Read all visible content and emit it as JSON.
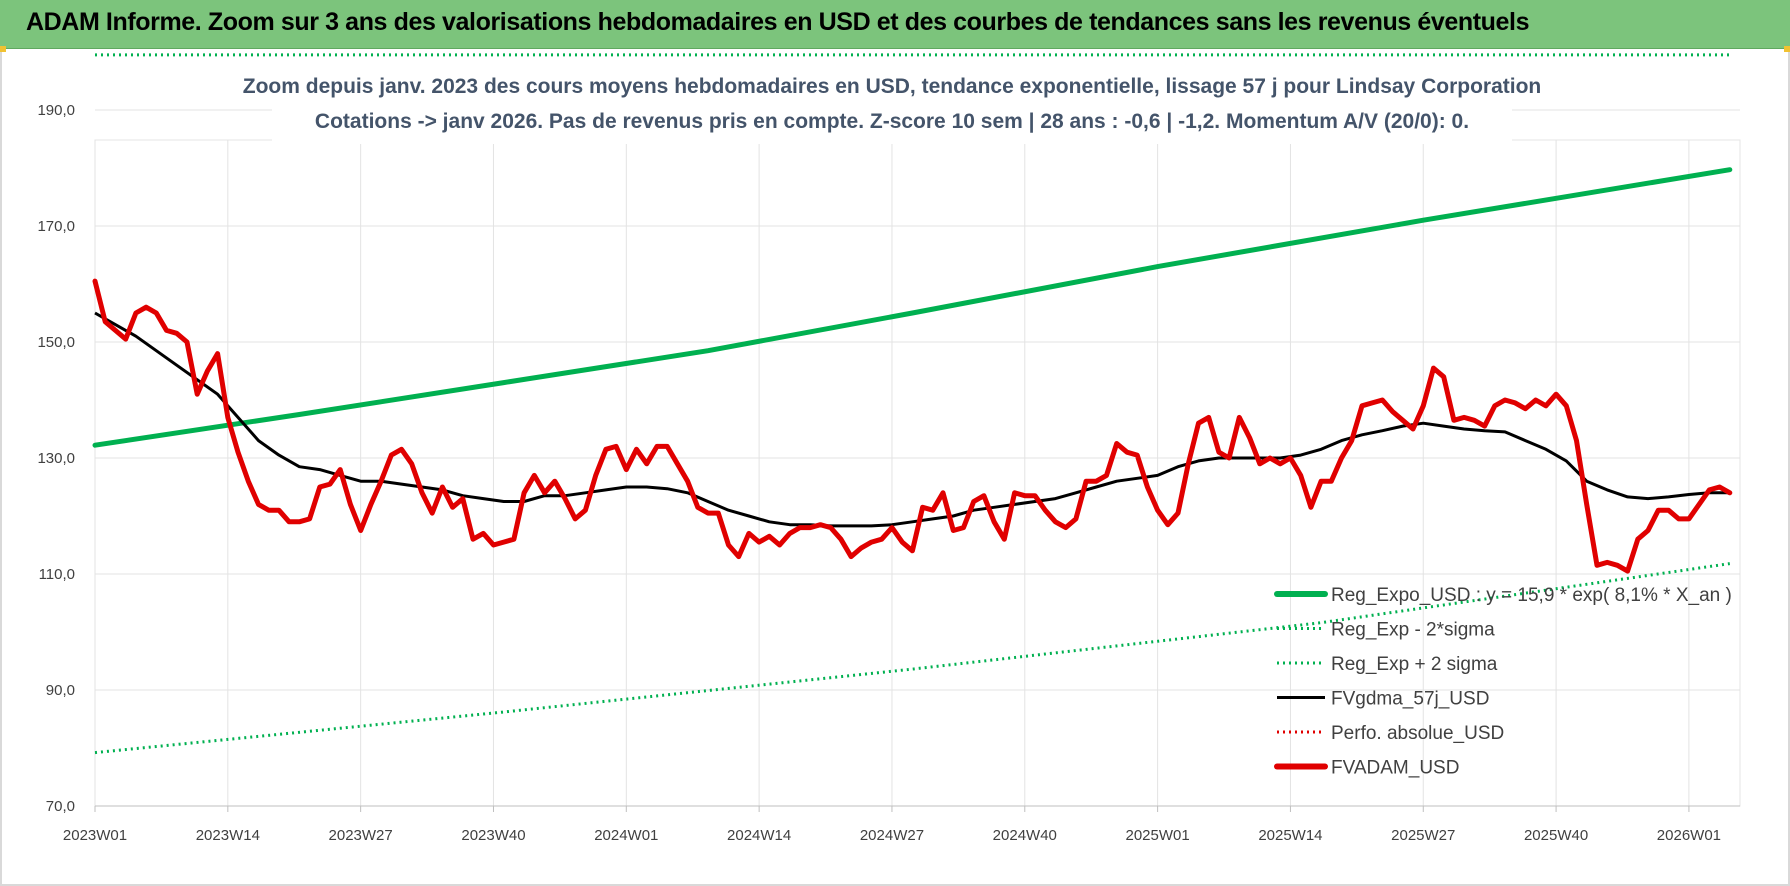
{
  "banner": {
    "title": "ADAM Informe. Zoom sur 3 ans des valorisations hebdomadaires en USD et des courbes de tendances sans les revenus éventuels"
  },
  "colors": {
    "banner_bg": "#7cc47c",
    "reg_green": "#00b050",
    "fv_black": "#000000",
    "perf_red": "#e00000",
    "subtitle": "#44546a"
  },
  "chart_data": {
    "type": "line",
    "subtitle_line1": "Zoom depuis janv. 2023 des cours moyens hebdomadaires en USD, tendance exponentielle, lissage 57 j pour Lindsay Corporation",
    "subtitle_line2": "Cotations -> janv 2026. Pas de revenus pris en compte. Z-score 10 sem | 28 ans : -0,6 | -1,2. Momentum A/V (20/0): 0.",
    "xlim": [
      0,
      161
    ],
    "ylim": [
      70,
      200
    ],
    "grid": true,
    "legend_position": "bottom-right",
    "x_ticks": [
      {
        "x": 0,
        "label": "2023W01"
      },
      {
        "x": 13,
        "label": "2023W14"
      },
      {
        "x": 26,
        "label": "2023W27"
      },
      {
        "x": 39,
        "label": "2023W40"
      },
      {
        "x": 52,
        "label": "2024W01"
      },
      {
        "x": 65,
        "label": "2024W14"
      },
      {
        "x": 78,
        "label": "2024W27"
      },
      {
        "x": 91,
        "label": "2024W40"
      },
      {
        "x": 104,
        "label": "2025W01"
      },
      {
        "x": 117,
        "label": "2025W14"
      },
      {
        "x": 130,
        "label": "2025W27"
      },
      {
        "x": 143,
        "label": "2025W40"
      },
      {
        "x": 156,
        "label": "2026W01"
      }
    ],
    "y_ticks": [
      {
        "v": 70,
        "label": "70,0"
      },
      {
        "v": 90,
        "label": "90,0"
      },
      {
        "v": 110,
        "label": "110,0"
      },
      {
        "v": 130,
        "label": "130,0"
      },
      {
        "v": 150,
        "label": "150,0"
      },
      {
        "v": 170,
        "label": "170,0"
      },
      {
        "v": 190,
        "label": "190,0"
      }
    ],
    "series": [
      {
        "name": "Reg_Expo_USD : y = 15,9 * exp( 8,1% *  X_an )",
        "style": "solid-thick",
        "color": "#00b050",
        "points": [
          [
            0,
            132.2
          ],
          [
            20,
            137.5
          ],
          [
            40,
            143
          ],
          [
            60,
            148.5
          ],
          [
            80,
            155
          ],
          [
            104,
            163
          ],
          [
            130,
            171
          ],
          [
            160,
            179.7
          ]
        ]
      },
      {
        "name": "Reg_Exp - 2*sigma",
        "style": "dotted",
        "color": "#00b050",
        "points": [
          [
            0,
            79.2
          ],
          [
            40,
            86.2
          ],
          [
            80,
            93.6
          ],
          [
            120,
            101.6
          ],
          [
            160,
            111.8
          ]
        ]
      },
      {
        "name": "Reg_Exp + 2 sigma",
        "style": "dotted",
        "color": "#00b050",
        "points": [
          [
            0,
            199.5
          ],
          [
            160,
            199.5
          ]
        ]
      },
      {
        "name": "FVgdma_57j_USD",
        "style": "solid",
        "color": "#000000",
        "points": [
          [
            0,
            155
          ],
          [
            4,
            151
          ],
          [
            8,
            146
          ],
          [
            12,
            141
          ],
          [
            14,
            137
          ],
          [
            16,
            133
          ],
          [
            18,
            130.5
          ],
          [
            20,
            128.5
          ],
          [
            22,
            128
          ],
          [
            24,
            127
          ],
          [
            26,
            126
          ],
          [
            28,
            126
          ],
          [
            30,
            125.5
          ],
          [
            32,
            125
          ],
          [
            34,
            124.5
          ],
          [
            36,
            123.5
          ],
          [
            38,
            123
          ],
          [
            40,
            122.5
          ],
          [
            42,
            122.5
          ],
          [
            44,
            123.5
          ],
          [
            46,
            123.5
          ],
          [
            48,
            124
          ],
          [
            50,
            124.5
          ],
          [
            52,
            125
          ],
          [
            54,
            125
          ],
          [
            56,
            124.7
          ],
          [
            58,
            124
          ],
          [
            60,
            122.5
          ],
          [
            62,
            121
          ],
          [
            64,
            120
          ],
          [
            66,
            119
          ],
          [
            68,
            118.5
          ],
          [
            70,
            118.5
          ],
          [
            72,
            118.3
          ],
          [
            74,
            118.3
          ],
          [
            76,
            118.3
          ],
          [
            78,
            118.5
          ],
          [
            80,
            119
          ],
          [
            82,
            119.5
          ],
          [
            84,
            120
          ],
          [
            86,
            121
          ],
          [
            88,
            121.5
          ],
          [
            90,
            122
          ],
          [
            92,
            122.5
          ],
          [
            94,
            123
          ],
          [
            96,
            124
          ],
          [
            98,
            125
          ],
          [
            100,
            126
          ],
          [
            102,
            126.5
          ],
          [
            104,
            127
          ],
          [
            106,
            128.5
          ],
          [
            108,
            129.5
          ],
          [
            110,
            130
          ],
          [
            112,
            130
          ],
          [
            114,
            130
          ],
          [
            116,
            130
          ],
          [
            118,
            130.5
          ],
          [
            120,
            131.5
          ],
          [
            122,
            133
          ],
          [
            124,
            134
          ],
          [
            126,
            134.7
          ],
          [
            128,
            135.5
          ],
          [
            130,
            136
          ],
          [
            132,
            135.5
          ],
          [
            134,
            135
          ],
          [
            136,
            134.7
          ],
          [
            138,
            134.5
          ],
          [
            140,
            133
          ],
          [
            142,
            131.5
          ],
          [
            144,
            129.5
          ],
          [
            146,
            126
          ],
          [
            148,
            124.5
          ],
          [
            150,
            123.3
          ],
          [
            152,
            123
          ],
          [
            154,
            123.3
          ],
          [
            156,
            123.7
          ],
          [
            158,
            124
          ],
          [
            160,
            124
          ]
        ]
      },
      {
        "name": "Perfo. absolue_USD",
        "style": "dotted",
        "color": "#e00000",
        "points": []
      },
      {
        "name": "FVADAM_USD",
        "style": "solid-thick",
        "color": "#e00000",
        "points": [
          [
            0,
            160.5
          ],
          [
            1,
            153.5
          ],
          [
            2,
            152
          ],
          [
            3,
            150.5
          ],
          [
            4,
            155
          ],
          [
            5,
            156
          ],
          [
            6,
            155
          ],
          [
            7,
            152
          ],
          [
            8,
            151.5
          ],
          [
            9,
            150
          ],
          [
            10,
            141
          ],
          [
            11,
            145
          ],
          [
            12,
            148
          ],
          [
            13,
            137
          ],
          [
            14,
            131
          ],
          [
            15,
            126
          ],
          [
            16,
            122
          ],
          [
            17,
            121
          ],
          [
            18,
            121
          ],
          [
            19,
            119
          ],
          [
            20,
            119
          ],
          [
            21,
            119.5
          ],
          [
            22,
            125
          ],
          [
            23,
            125.5
          ],
          [
            24,
            128
          ],
          [
            25,
            122
          ],
          [
            26,
            117.5
          ],
          [
            27,
            122
          ],
          [
            28,
            126
          ],
          [
            29,
            130.5
          ],
          [
            30,
            131.5
          ],
          [
            31,
            129
          ],
          [
            32,
            124
          ],
          [
            33,
            120.5
          ],
          [
            34,
            125
          ],
          [
            35,
            121.5
          ],
          [
            36,
            123
          ],
          [
            37,
            116
          ],
          [
            38,
            117
          ],
          [
            39,
            115
          ],
          [
            40,
            115.5
          ],
          [
            41,
            116
          ],
          [
            42,
            124
          ],
          [
            43,
            127
          ],
          [
            44,
            124
          ],
          [
            45,
            126
          ],
          [
            46,
            123
          ],
          [
            47,
            119.5
          ],
          [
            48,
            121
          ],
          [
            49,
            127
          ],
          [
            50,
            131.5
          ],
          [
            51,
            132
          ],
          [
            52,
            128
          ],
          [
            53,
            131.5
          ],
          [
            54,
            129
          ],
          [
            55,
            132
          ],
          [
            56,
            132
          ],
          [
            57,
            129
          ],
          [
            58,
            126
          ],
          [
            59,
            121.5
          ],
          [
            60,
            120.5
          ],
          [
            61,
            120.5
          ],
          [
            62,
            115
          ],
          [
            63,
            113
          ],
          [
            64,
            117
          ],
          [
            65,
            115.5
          ],
          [
            66,
            116.5
          ],
          [
            67,
            115
          ],
          [
            68,
            117
          ],
          [
            69,
            118
          ],
          [
            70,
            118
          ],
          [
            71,
            118.5
          ],
          [
            72,
            118
          ],
          [
            73,
            116
          ],
          [
            74,
            113
          ],
          [
            75,
            114.5
          ],
          [
            76,
            115.5
          ],
          [
            77,
            116
          ],
          [
            78,
            118
          ],
          [
            79,
            115.5
          ],
          [
            80,
            114
          ],
          [
            81,
            121.5
          ],
          [
            82,
            121
          ],
          [
            83,
            124
          ],
          [
            84,
            117.5
          ],
          [
            85,
            118
          ],
          [
            86,
            122.5
          ],
          [
            87,
            123.5
          ],
          [
            88,
            119
          ],
          [
            89,
            116
          ],
          [
            90,
            124
          ],
          [
            91,
            123.5
          ],
          [
            92,
            123.5
          ],
          [
            93,
            121
          ],
          [
            94,
            119
          ],
          [
            95,
            118
          ],
          [
            96,
            119.5
          ],
          [
            97,
            126
          ],
          [
            98,
            126
          ],
          [
            99,
            127
          ],
          [
            100,
            132.5
          ],
          [
            101,
            131
          ],
          [
            102,
            130.5
          ],
          [
            103,
            125
          ],
          [
            104,
            121
          ],
          [
            105,
            118.5
          ],
          [
            106,
            120.5
          ],
          [
            107,
            129
          ],
          [
            108,
            136
          ],
          [
            109,
            137
          ],
          [
            110,
            131
          ],
          [
            111,
            130
          ],
          [
            112,
            137
          ],
          [
            113,
            133.5
          ],
          [
            114,
            129
          ],
          [
            115,
            130
          ],
          [
            116,
            129
          ],
          [
            117,
            130
          ],
          [
            118,
            127
          ],
          [
            119,
            121.5
          ],
          [
            120,
            126
          ],
          [
            121,
            126
          ],
          [
            122,
            130
          ],
          [
            123,
            133
          ],
          [
            124,
            139
          ],
          [
            125,
            139.5
          ],
          [
            126,
            140
          ],
          [
            127,
            138
          ],
          [
            128,
            136.5
          ],
          [
            129,
            135
          ],
          [
            130,
            139
          ],
          [
            131,
            145.5
          ],
          [
            132,
            144
          ],
          [
            133,
            136.5
          ],
          [
            134,
            137
          ],
          [
            135,
            136.5
          ],
          [
            136,
            135.5
          ],
          [
            137,
            139
          ],
          [
            138,
            140
          ],
          [
            139,
            139.5
          ],
          [
            140,
            138.5
          ],
          [
            141,
            140
          ],
          [
            142,
            139
          ],
          [
            143,
            141
          ],
          [
            144,
            139
          ],
          [
            145,
            133
          ],
          [
            146,
            122
          ],
          [
            147,
            111.5
          ],
          [
            148,
            112
          ],
          [
            149,
            111.5
          ],
          [
            150,
            110.5
          ],
          [
            151,
            116
          ],
          [
            152,
            117.5
          ],
          [
            153,
            121
          ],
          [
            154,
            121
          ],
          [
            155,
            119.5
          ],
          [
            156,
            119.5
          ],
          [
            157,
            122
          ],
          [
            158,
            124.5
          ],
          [
            159,
            125
          ],
          [
            160,
            124
          ]
        ]
      }
    ]
  }
}
